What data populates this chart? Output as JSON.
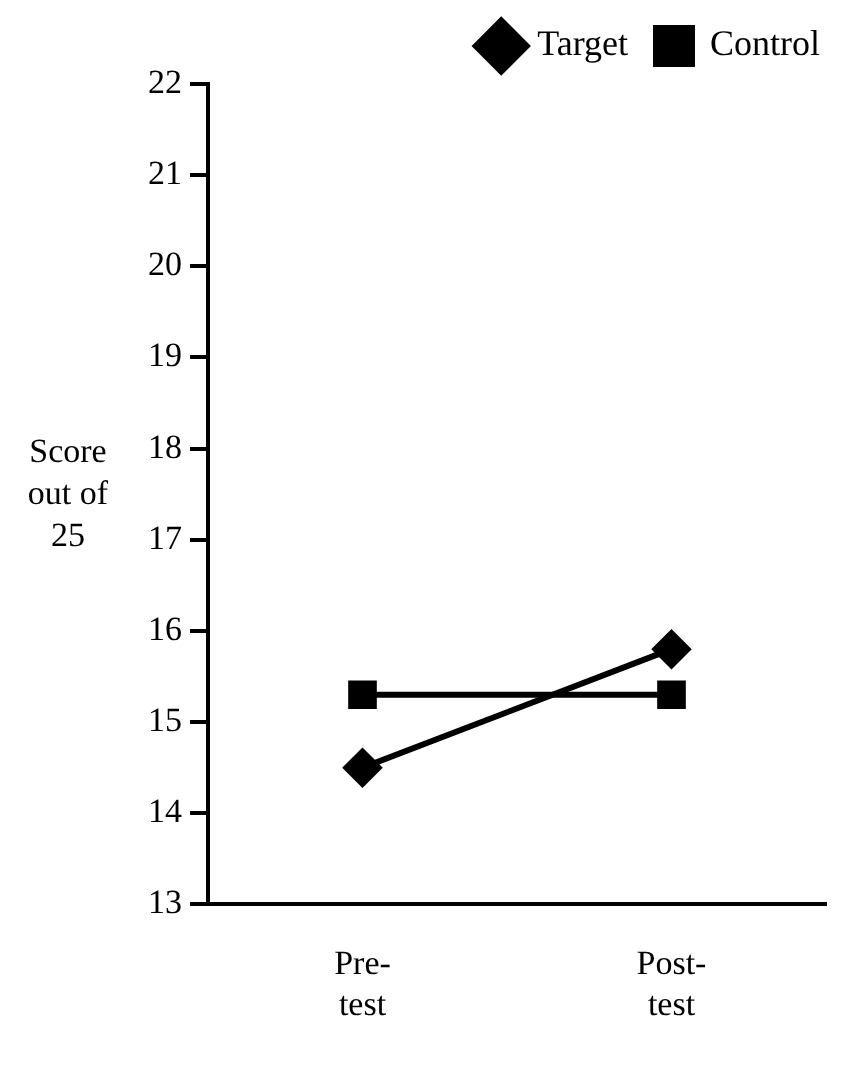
{
  "chart_data": {
    "type": "line",
    "ylabel": "Score out of 25",
    "categories": [
      "Pre-\ntest",
      "Post-\ntest"
    ],
    "series": [
      {
        "name": "Target",
        "color": "#000000",
        "marker": "diamond",
        "values": [
          14.5,
          15.8
        ]
      },
      {
        "name": "Control",
        "color": "#000000",
        "marker": "square",
        "values": [
          15.3,
          15.3
        ]
      }
    ],
    "ylim": [
      13,
      22
    ],
    "yticks": [
      13,
      14,
      15,
      16,
      17,
      18,
      19,
      20,
      21,
      22
    ],
    "grid": false,
    "legend": "top right",
    "line_style": "solid"
  }
}
